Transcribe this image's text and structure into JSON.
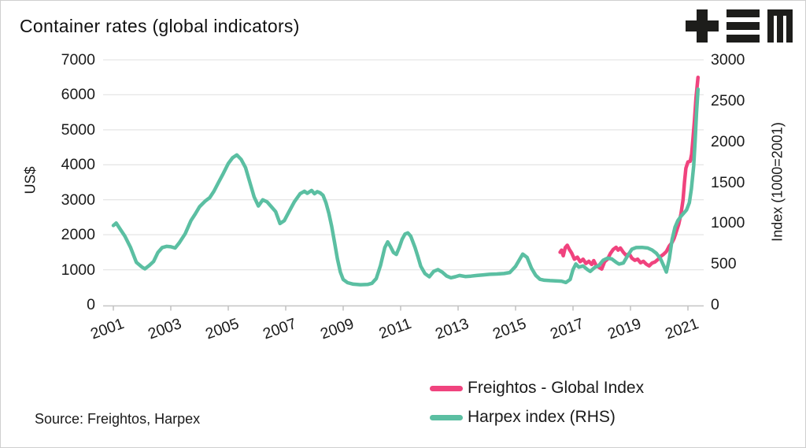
{
  "title": "Container rates (global indicators)",
  "source": "Source: Freightos, Harpex",
  "logo": {
    "icon": "plus-triplebar-m-logo",
    "color": "#1d1d1b"
  },
  "colors": {
    "freightos": "#F0437E",
    "harpex": "#5BBFA2",
    "grid": "#e6e6e6",
    "axis": "#c4c4c4",
    "text": "#1a1a1a",
    "background": "#ffffff"
  },
  "chart_data": {
    "type": "line",
    "title": "Container rates (global indicators)",
    "grid": "horizontal",
    "legend_position": "bottom-right",
    "left_axis": {
      "label": "US$",
      "range": [
        0,
        7000
      ],
      "ticks": [
        0,
        1000,
        2000,
        3000,
        4000,
        5000,
        6000,
        7000
      ]
    },
    "right_axis": {
      "label": "Index (1000=2001)",
      "range": [
        0,
        3000
      ],
      "ticks": [
        0,
        500,
        1000,
        1500,
        2000,
        2500,
        3000
      ]
    },
    "x_axis": {
      "range": [
        2000.65,
        2021.55
      ],
      "ticks": [
        2001,
        2003,
        2005,
        2007,
        2009,
        2011,
        2013,
        2015,
        2017,
        2019,
        2021
      ]
    },
    "series": [
      {
        "name": "Freightos - Global Index",
        "axis": "left",
        "color": "#F0437E",
        "points": [
          [
            2016.55,
            1500
          ],
          [
            2016.6,
            1560
          ],
          [
            2016.66,
            1400
          ],
          [
            2016.73,
            1630
          ],
          [
            2016.8,
            1700
          ],
          [
            2016.87,
            1580
          ],
          [
            2016.95,
            1480
          ],
          [
            2017.05,
            1300
          ],
          [
            2017.15,
            1360
          ],
          [
            2017.25,
            1230
          ],
          [
            2017.35,
            1300
          ],
          [
            2017.45,
            1180
          ],
          [
            2017.55,
            1240
          ],
          [
            2017.65,
            1150
          ],
          [
            2017.72,
            1260
          ],
          [
            2017.8,
            1130
          ],
          [
            2017.9,
            1070
          ],
          [
            2018.0,
            1020
          ],
          [
            2018.1,
            1230
          ],
          [
            2018.2,
            1300
          ],
          [
            2018.3,
            1460
          ],
          [
            2018.4,
            1580
          ],
          [
            2018.5,
            1640
          ],
          [
            2018.57,
            1560
          ],
          [
            2018.65,
            1620
          ],
          [
            2018.75,
            1500
          ],
          [
            2018.85,
            1410
          ],
          [
            2018.95,
            1460
          ],
          [
            2019.05,
            1330
          ],
          [
            2019.15,
            1270
          ],
          [
            2019.25,
            1300
          ],
          [
            2019.35,
            1200
          ],
          [
            2019.45,
            1240
          ],
          [
            2019.55,
            1160
          ],
          [
            2019.65,
            1110
          ],
          [
            2019.75,
            1190
          ],
          [
            2019.85,
            1220
          ],
          [
            2019.95,
            1290
          ],
          [
            2020.05,
            1380
          ],
          [
            2020.15,
            1440
          ],
          [
            2020.25,
            1520
          ],
          [
            2020.35,
            1680
          ],
          [
            2020.45,
            1780
          ],
          [
            2020.52,
            1900
          ],
          [
            2020.6,
            2100
          ],
          [
            2020.68,
            2300
          ],
          [
            2020.76,
            2600
          ],
          [
            2020.83,
            3000
          ],
          [
            2020.88,
            3500
          ],
          [
            2020.93,
            3900
          ],
          [
            2021.0,
            4080
          ],
          [
            2021.08,
            4100
          ],
          [
            2021.13,
            4300
          ],
          [
            2021.18,
            4800
          ],
          [
            2021.23,
            5300
          ],
          [
            2021.28,
            5900
          ],
          [
            2021.32,
            6250
          ],
          [
            2021.35,
            6500
          ]
        ]
      },
      {
        "name": "Harpex index (RHS)",
        "axis": "right",
        "color": "#5BBFA2",
        "points": [
          [
            2001.0,
            970
          ],
          [
            2001.1,
            1000
          ],
          [
            2001.25,
            920
          ],
          [
            2001.4,
            840
          ],
          [
            2001.6,
            700
          ],
          [
            2001.8,
            520
          ],
          [
            2002.0,
            460
          ],
          [
            2002.1,
            440
          ],
          [
            2002.25,
            480
          ],
          [
            2002.4,
            530
          ],
          [
            2002.55,
            640
          ],
          [
            2002.7,
            700
          ],
          [
            2002.85,
            715
          ],
          [
            2003.0,
            710
          ],
          [
            2003.15,
            695
          ],
          [
            2003.3,
            760
          ],
          [
            2003.5,
            870
          ],
          [
            2003.7,
            1030
          ],
          [
            2003.85,
            1110
          ],
          [
            2004.0,
            1200
          ],
          [
            2004.2,
            1270
          ],
          [
            2004.35,
            1310
          ],
          [
            2004.5,
            1390
          ],
          [
            2004.65,
            1490
          ],
          [
            2004.8,
            1590
          ],
          [
            2005.0,
            1730
          ],
          [
            2005.15,
            1800
          ],
          [
            2005.3,
            1835
          ],
          [
            2005.45,
            1780
          ],
          [
            2005.6,
            1680
          ],
          [
            2005.75,
            1500
          ],
          [
            2005.9,
            1320
          ],
          [
            2006.05,
            1210
          ],
          [
            2006.2,
            1285
          ],
          [
            2006.35,
            1260
          ],
          [
            2006.5,
            1200
          ],
          [
            2006.65,
            1140
          ],
          [
            2006.8,
            995
          ],
          [
            2006.95,
            1030
          ],
          [
            2007.1,
            1130
          ],
          [
            2007.3,
            1260
          ],
          [
            2007.5,
            1360
          ],
          [
            2007.65,
            1390
          ],
          [
            2007.75,
            1365
          ],
          [
            2007.9,
            1400
          ],
          [
            2008.0,
            1360
          ],
          [
            2008.1,
            1385
          ],
          [
            2008.2,
            1370
          ],
          [
            2008.3,
            1340
          ],
          [
            2008.4,
            1250
          ],
          [
            2008.5,
            1120
          ],
          [
            2008.6,
            960
          ],
          [
            2008.7,
            760
          ],
          [
            2008.8,
            560
          ],
          [
            2008.9,
            400
          ],
          [
            2009.0,
            310
          ],
          [
            2009.15,
            270
          ],
          [
            2009.35,
            252
          ],
          [
            2009.6,
            245
          ],
          [
            2009.85,
            248
          ],
          [
            2010.0,
            262
          ],
          [
            2010.15,
            320
          ],
          [
            2010.3,
            480
          ],
          [
            2010.45,
            700
          ],
          [
            2010.55,
            770
          ],
          [
            2010.65,
            710
          ],
          [
            2010.75,
            640
          ],
          [
            2010.85,
            615
          ],
          [
            2010.95,
            700
          ],
          [
            2011.05,
            800
          ],
          [
            2011.15,
            865
          ],
          [
            2011.25,
            880
          ],
          [
            2011.35,
            840
          ],
          [
            2011.5,
            700
          ],
          [
            2011.6,
            590
          ],
          [
            2011.7,
            470
          ],
          [
            2011.85,
            380
          ],
          [
            2012.0,
            342
          ],
          [
            2012.15,
            408
          ],
          [
            2012.3,
            430
          ],
          [
            2012.45,
            398
          ],
          [
            2012.6,
            352
          ],
          [
            2012.75,
            330
          ],
          [
            2012.9,
            342
          ],
          [
            2013.05,
            358
          ],
          [
            2013.25,
            345
          ],
          [
            2013.45,
            350
          ],
          [
            2013.65,
            358
          ],
          [
            2013.85,
            365
          ],
          [
            2014.1,
            372
          ],
          [
            2014.35,
            376
          ],
          [
            2014.6,
            382
          ],
          [
            2014.8,
            395
          ],
          [
            2015.0,
            470
          ],
          [
            2015.15,
            560
          ],
          [
            2015.25,
            620
          ],
          [
            2015.4,
            580
          ],
          [
            2015.55,
            450
          ],
          [
            2015.7,
            360
          ],
          [
            2015.85,
            312
          ],
          [
            2016.0,
            300
          ],
          [
            2016.2,
            295
          ],
          [
            2016.4,
            292
          ],
          [
            2016.6,
            288
          ],
          [
            2016.75,
            272
          ],
          [
            2016.9,
            310
          ],
          [
            2017.0,
            430
          ],
          [
            2017.1,
            500
          ],
          [
            2017.2,
            460
          ],
          [
            2017.35,
            475
          ],
          [
            2017.5,
            430
          ],
          [
            2017.6,
            408
          ],
          [
            2017.75,
            455
          ],
          [
            2017.9,
            480
          ],
          [
            2018.05,
            545
          ],
          [
            2018.2,
            570
          ],
          [
            2018.35,
            560
          ],
          [
            2018.5,
            520
          ],
          [
            2018.6,
            498
          ],
          [
            2018.75,
            510
          ],
          [
            2018.9,
            600
          ],
          [
            2019.05,
            680
          ],
          [
            2019.2,
            700
          ],
          [
            2019.4,
            702
          ],
          [
            2019.6,
            695
          ],
          [
            2019.75,
            670
          ],
          [
            2019.9,
            630
          ],
          [
            2020.05,
            560
          ],
          [
            2020.15,
            480
          ],
          [
            2020.25,
            400
          ],
          [
            2020.35,
            560
          ],
          [
            2020.45,
            800
          ],
          [
            2020.55,
            950
          ],
          [
            2020.65,
            1030
          ],
          [
            2020.75,
            1080
          ],
          [
            2020.85,
            1120
          ],
          [
            2020.95,
            1160
          ],
          [
            2021.05,
            1250
          ],
          [
            2021.12,
            1420
          ],
          [
            2021.2,
            1700
          ],
          [
            2021.25,
            2000
          ],
          [
            2021.3,
            2350
          ],
          [
            2021.35,
            2640
          ]
        ]
      }
    ]
  }
}
